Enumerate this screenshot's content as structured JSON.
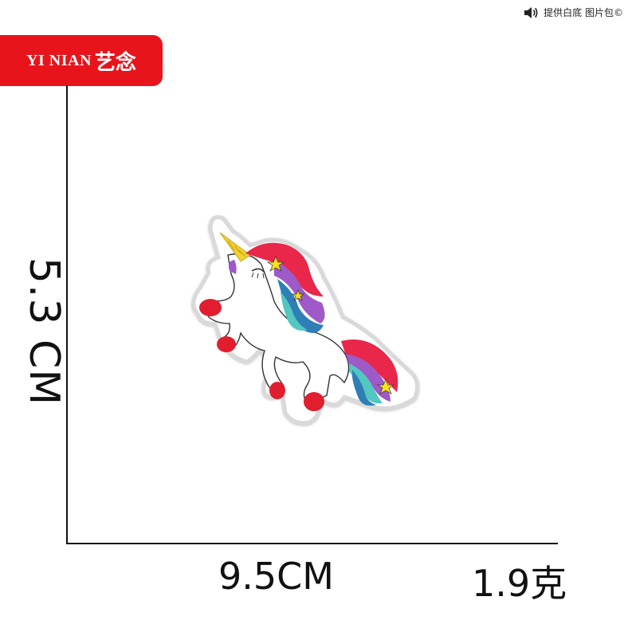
{
  "notice": {
    "text": "提供白底 图片包©",
    "icon": "speaker-icon"
  },
  "brand": {
    "latin": "YI NIAN",
    "cjk": "艺念",
    "color": "#e8141c"
  },
  "dimensions": {
    "height": "5.3 CM",
    "width": "9.5CM",
    "weight": "1.9克"
  },
  "product": {
    "icon": "unicorn-patch-icon",
    "colors": {
      "border": "#d9d9d9",
      "fill": "#ffffff",
      "horn": "#f2d22e",
      "mane_red": "#e8274a",
      "mane_purple": "#9d5ac8",
      "mane_blue": "#2f7fb6",
      "mane_teal": "#53c7c2",
      "hoof": "#e01e2e",
      "star": "#f7e11a"
    }
  }
}
